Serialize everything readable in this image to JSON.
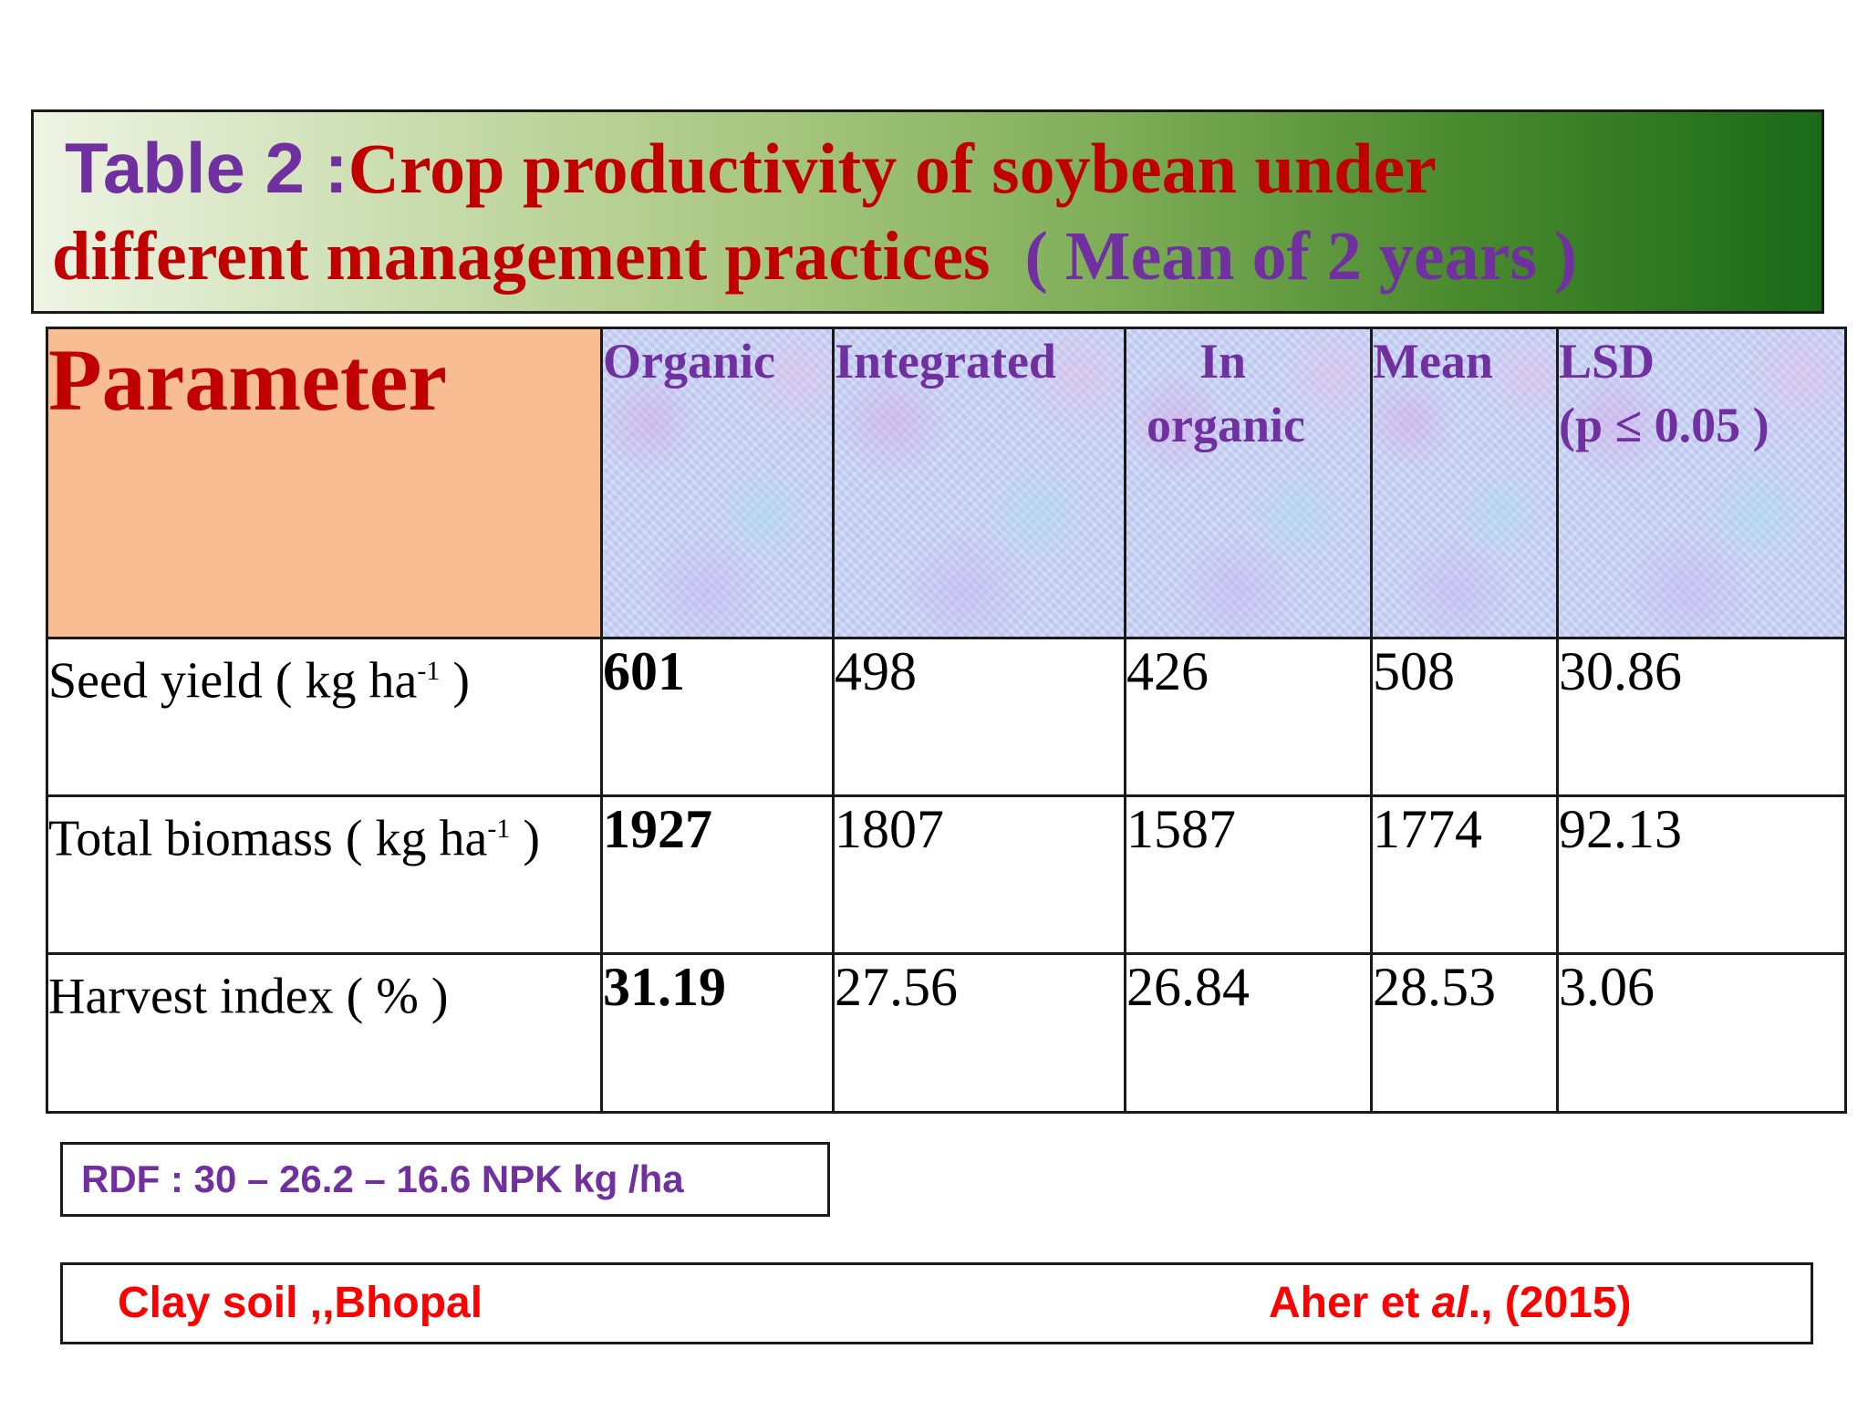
{
  "title": {
    "label": "Table 2 :",
    "line1": "Crop productivity of soybean under",
    "line2": "different management practices  ",
    "suffix": "( Mean of 2 years )"
  },
  "table": {
    "headers": {
      "parameter": "Parameter",
      "organic": "Organic",
      "integrated": "Integrated",
      "inorganic_1": "In",
      "inorganic_2": "organic",
      "mean": "Mean",
      "lsd_1": "LSD",
      "lsd_2": "(p ≤ 0.05 )"
    },
    "rows": [
      {
        "label": "Seed yield ( kg ha",
        "sup": "-1",
        "close": " )",
        "organic": "601",
        "integrated": "498",
        "inorganic": "426",
        "mean": "508",
        "lsd": "30.86"
      },
      {
        "label": "Total biomass ( kg ha",
        "sup": "-1",
        "close": " )",
        "organic": "1927",
        "integrated": "1807",
        "inorganic": "1587",
        "mean": "1774",
        "lsd": "92.13"
      },
      {
        "label": "Harvest index ( % )",
        "sup": "",
        "close": "",
        "organic": "31.19",
        "integrated": "27.56",
        "inorganic": "26.84",
        "mean": "28.53",
        "lsd": "3.06"
      }
    ]
  },
  "rdf": "RDF : 30 – 26.2 – 16.6 NPK kg /ha",
  "source": {
    "location": "Clay soil ,,Bhopal",
    "author": "Aher et ",
    "etal": "al",
    "year": "., (2015)"
  },
  "colors": {
    "title_label": "#7030a0",
    "title_text": "#c00000",
    "parameter_bg": "#f8bd92",
    "source_text": "#ff0000"
  }
}
